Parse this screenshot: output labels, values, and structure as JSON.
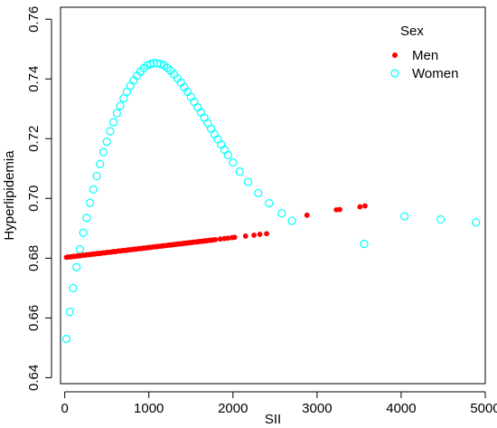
{
  "chart_data": {
    "type": "scatter",
    "xlabel": "SII",
    "ylabel": "Hyperlipidemia",
    "xlim": [
      -50,
      5000
    ],
    "ylim": [
      0.638,
      0.764
    ],
    "x_ticks": [
      0,
      1000,
      2000,
      3000,
      4000,
      5000
    ],
    "x_tick_labels": [
      "0",
      "1000",
      "2000",
      "3000",
      "4000",
      "5000"
    ],
    "y_ticks": [
      0.64,
      0.66,
      0.68,
      0.7,
      0.72,
      0.74,
      0.76
    ],
    "y_tick_labels": [
      "0.64",
      "0.66",
      "0.68",
      "0.70",
      "0.72",
      "0.74",
      "0.76"
    ],
    "legend": {
      "title": "Sex",
      "position": "top-right",
      "entries": [
        "Men",
        "Women"
      ]
    },
    "series": [
      {
        "name": "Men",
        "color": "#ff0000",
        "marker": "filled-circle",
        "points": [
          [
            20,
            0.6803
          ],
          [
            40,
            0.6804
          ],
          [
            60,
            0.6804
          ],
          [
            80,
            0.6805
          ],
          [
            100,
            0.6806
          ],
          [
            120,
            0.6806
          ],
          [
            140,
            0.6807
          ],
          [
            160,
            0.6808
          ],
          [
            180,
            0.6808
          ],
          [
            200,
            0.6809
          ],
          [
            220,
            0.681
          ],
          [
            240,
            0.681
          ],
          [
            260,
            0.6811
          ],
          [
            280,
            0.6812
          ],
          [
            300,
            0.6812
          ],
          [
            320,
            0.6813
          ],
          [
            340,
            0.6814
          ],
          [
            360,
            0.6814
          ],
          [
            380,
            0.6815
          ],
          [
            400,
            0.6816
          ],
          [
            420,
            0.6816
          ],
          [
            440,
            0.6817
          ],
          [
            460,
            0.6818
          ],
          [
            480,
            0.6818
          ],
          [
            500,
            0.6819
          ],
          [
            520,
            0.682
          ],
          [
            540,
            0.682
          ],
          [
            560,
            0.6821
          ],
          [
            580,
            0.6822
          ],
          [
            600,
            0.6822
          ],
          [
            620,
            0.6823
          ],
          [
            640,
            0.6824
          ],
          [
            660,
            0.6824
          ],
          [
            680,
            0.6825
          ],
          [
            700,
            0.6826
          ],
          [
            720,
            0.6826
          ],
          [
            740,
            0.6827
          ],
          [
            760,
            0.6828
          ],
          [
            780,
            0.6828
          ],
          [
            800,
            0.6829
          ],
          [
            820,
            0.683
          ],
          [
            840,
            0.683
          ],
          [
            860,
            0.6831
          ],
          [
            880,
            0.6832
          ],
          [
            900,
            0.6832
          ],
          [
            920,
            0.6833
          ],
          [
            940,
            0.6834
          ],
          [
            960,
            0.6834
          ],
          [
            980,
            0.6835
          ],
          [
            1000,
            0.6836
          ],
          [
            1020,
            0.6836
          ],
          [
            1040,
            0.6837
          ],
          [
            1060,
            0.6838
          ],
          [
            1080,
            0.6838
          ],
          [
            1100,
            0.6839
          ],
          [
            1120,
            0.684
          ],
          [
            1140,
            0.684
          ],
          [
            1160,
            0.6841
          ],
          [
            1180,
            0.6842
          ],
          [
            1200,
            0.6842
          ],
          [
            1220,
            0.6843
          ],
          [
            1240,
            0.6844
          ],
          [
            1260,
            0.6844
          ],
          [
            1280,
            0.6845
          ],
          [
            1300,
            0.6846
          ],
          [
            1320,
            0.6846
          ],
          [
            1340,
            0.6847
          ],
          [
            1360,
            0.6848
          ],
          [
            1380,
            0.6848
          ],
          [
            1400,
            0.6849
          ],
          [
            1420,
            0.685
          ],
          [
            1440,
            0.685
          ],
          [
            1460,
            0.6851
          ],
          [
            1480,
            0.6852
          ],
          [
            1500,
            0.6852
          ],
          [
            1520,
            0.6853
          ],
          [
            1540,
            0.6854
          ],
          [
            1560,
            0.6854
          ],
          [
            1580,
            0.6855
          ],
          [
            1600,
            0.6856
          ],
          [
            1620,
            0.6856
          ],
          [
            1640,
            0.6857
          ],
          [
            1660,
            0.6858
          ],
          [
            1680,
            0.6858
          ],
          [
            1700,
            0.6859
          ],
          [
            1720,
            0.686
          ],
          [
            1740,
            0.686
          ],
          [
            1760,
            0.6861
          ],
          [
            1790,
            0.6862
          ],
          [
            1850,
            0.6864
          ],
          [
            1900,
            0.6866
          ],
          [
            1940,
            0.6867
          ],
          [
            1990,
            0.6869
          ],
          [
            2020,
            0.687
          ],
          [
            2150,
            0.6874
          ],
          [
            2250,
            0.6877
          ],
          [
            2320,
            0.688
          ],
          [
            2400,
            0.6882
          ],
          [
            2880,
            0.6944
          ],
          [
            3230,
            0.6962
          ],
          [
            3270,
            0.6963
          ],
          [
            3510,
            0.6972
          ],
          [
            3570,
            0.6975
          ]
        ]
      },
      {
        "name": "Women",
        "color": "#00ffff",
        "marker": "open-circle",
        "points": [
          [
            20,
            0.653
          ],
          [
            60,
            0.662
          ],
          [
            100,
            0.67
          ],
          [
            140,
            0.677
          ],
          [
            180,
            0.683
          ],
          [
            220,
            0.6885
          ],
          [
            260,
            0.6935
          ],
          [
            300,
            0.6985
          ],
          [
            340,
            0.703
          ],
          [
            380,
            0.7075
          ],
          [
            420,
            0.7115
          ],
          [
            460,
            0.7155
          ],
          [
            500,
            0.719
          ],
          [
            540,
            0.7225
          ],
          [
            580,
            0.7255
          ],
          [
            620,
            0.7285
          ],
          [
            660,
            0.731
          ],
          [
            700,
            0.7335
          ],
          [
            740,
            0.7357
          ],
          [
            780,
            0.7377
          ],
          [
            820,
            0.7395
          ],
          [
            860,
            0.7411
          ],
          [
            900,
            0.7425
          ],
          [
            940,
            0.7436
          ],
          [
            980,
            0.7445
          ],
          [
            1020,
            0.745
          ],
          [
            1060,
            0.7453
          ],
          [
            1100,
            0.7452
          ],
          [
            1140,
            0.745
          ],
          [
            1180,
            0.7445
          ],
          [
            1220,
            0.7437
          ],
          [
            1260,
            0.7428
          ],
          [
            1300,
            0.7415
          ],
          [
            1340,
            0.7402
          ],
          [
            1380,
            0.7388
          ],
          [
            1420,
            0.7372
          ],
          [
            1460,
            0.7357
          ],
          [
            1500,
            0.734
          ],
          [
            1540,
            0.7323
          ],
          [
            1580,
            0.7305
          ],
          [
            1620,
            0.7288
          ],
          [
            1660,
            0.727
          ],
          [
            1700,
            0.7252
          ],
          [
            1740,
            0.7233
          ],
          [
            1780,
            0.7215
          ],
          [
            1820,
            0.7198
          ],
          [
            1860,
            0.718
          ],
          [
            1900,
            0.7163
          ],
          [
            1940,
            0.7145
          ],
          [
            2000,
            0.712
          ],
          [
            2080,
            0.709
          ],
          [
            2180,
            0.7055
          ],
          [
            2300,
            0.7018
          ],
          [
            2430,
            0.6984
          ],
          [
            2580,
            0.695
          ],
          [
            2700,
            0.6925
          ],
          [
            3560,
            0.6848
          ],
          [
            4040,
            0.694
          ],
          [
            4470,
            0.693
          ],
          [
            4890,
            0.692
          ]
        ]
      }
    ]
  }
}
